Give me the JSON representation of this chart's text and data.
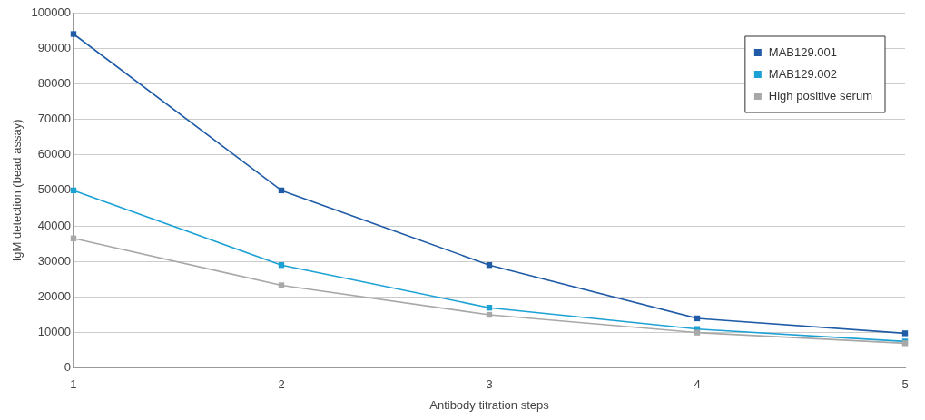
{
  "chart_data": {
    "type": "line",
    "xlabel": "Antibody titration steps",
    "ylabel": "IgM detection (bead assay)",
    "x": [
      1,
      2,
      3,
      4,
      5
    ],
    "xlim": [
      1,
      5
    ],
    "xticks": [
      1,
      2,
      3,
      4,
      5
    ],
    "ylim": [
      0,
      100000
    ],
    "yticks": [
      0,
      10000,
      20000,
      30000,
      40000,
      50000,
      60000,
      70000,
      80000,
      90000,
      100000
    ],
    "grid": "y",
    "legend": "top right",
    "marker": "square",
    "line_style": "solid",
    "series": [
      {
        "name": "MAB129.001",
        "color": "#1f5ba6",
        "values": [
          94000,
          50000,
          29000,
          14000,
          9800
        ]
      },
      {
        "name": "MAB129.002",
        "color": "#1ba1d4",
        "values": [
          50000,
          29000,
          17000,
          11000,
          7500
        ]
      },
      {
        "name": "High positive serum",
        "color": "#a8a8a8",
        "values": [
          36500,
          23300,
          15000,
          10000,
          7000
        ]
      }
    ]
  }
}
